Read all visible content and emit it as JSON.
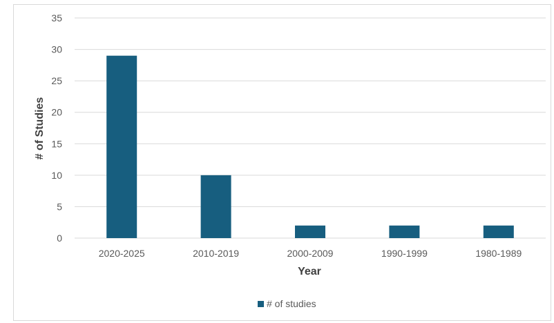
{
  "chart_data": {
    "type": "bar",
    "title": "",
    "xlabel": "Year",
    "ylabel": "# of Studies",
    "categories": [
      "2020-2025",
      "2010-2019",
      "2000-2009",
      "1990-1999",
      "1980-1989"
    ],
    "series": [
      {
        "name": "# of studies",
        "values": [
          29,
          10,
          2,
          2,
          2
        ],
        "color": "#175e7f"
      }
    ],
    "ylim": [
      0,
      35
    ],
    "yticks": [
      0,
      5,
      10,
      15,
      20,
      25,
      30,
      35
    ],
    "grid": true,
    "legend_position": "bottom-center"
  }
}
